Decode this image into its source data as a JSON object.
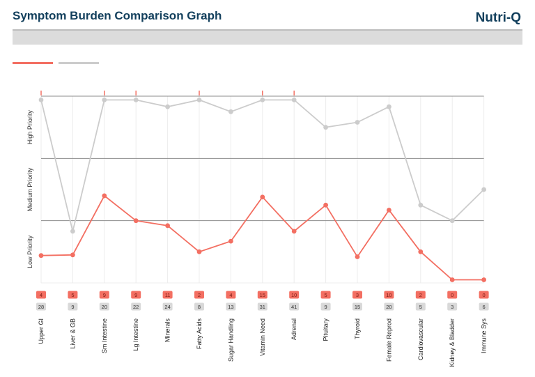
{
  "header": {
    "title": "Symptom Burden Comparison Graph",
    "brand": "Nutri-Q"
  },
  "legend": {
    "series_a_color": "#f36f62",
    "series_b_color": "#cccccc"
  },
  "chart_data": {
    "type": "line",
    "categories": [
      "Upper GI",
      "Liver & GB",
      "Sm Intestine",
      "Lg Intestine",
      "Minerals",
      "Fatty Acids",
      "Sugar Handling",
      "Vitamin Need",
      "Adrenal",
      "Pituitary",
      "Thyroid",
      "Female Reprod",
      "Cardiovascular",
      "Kidney & Bladder",
      "Immune Sys"
    ],
    "y_bands": [
      "Low Priority",
      "Medium Priority",
      "High Priority"
    ],
    "ylim": [
      0,
      3
    ],
    "series": [
      {
        "color": "#f36f62",
        "scores": [
          4,
          5,
          9,
          9,
          11,
          2,
          4,
          15,
          10,
          5,
          3,
          10,
          2,
          0,
          0
        ],
        "levels": [
          0.44,
          0.45,
          1.4,
          1.0,
          0.92,
          0.5,
          0.67,
          1.38,
          0.83,
          1.25,
          0.42,
          1.17,
          0.5,
          0.05,
          0.05
        ]
      },
      {
        "color": "#cccccc",
        "scores": [
          28,
          9,
          20,
          22,
          24,
          8,
          13,
          31,
          41,
          9,
          15,
          20,
          5,
          3,
          6
        ],
        "levels": [
          2.94,
          0.83,
          2.94,
          2.94,
          2.83,
          2.94,
          2.75,
          2.94,
          2.94,
          2.5,
          2.58,
          2.83,
          1.25,
          1.0,
          1.5
        ]
      }
    ],
    "over_threshold_markers": [
      0,
      2,
      3,
      5,
      7,
      8
    ],
    "grid": true
  }
}
